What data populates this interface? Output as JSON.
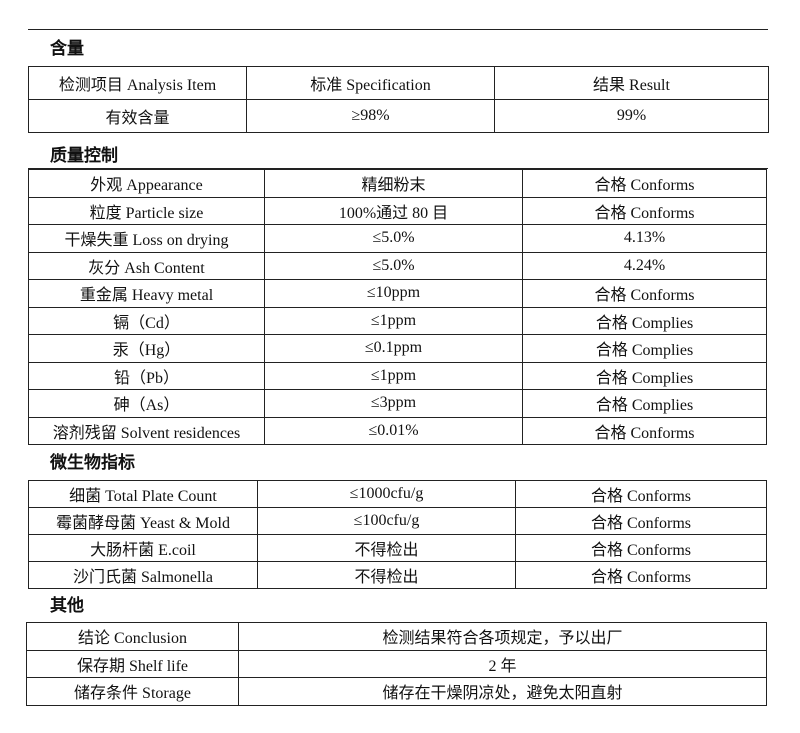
{
  "sections": [
    {
      "title": "含量",
      "header": [
        "检测项目  Analysis Item",
        "标准    Specification",
        "结果  Result"
      ],
      "rows": [
        [
          "有效含量",
          "≥98%",
          "99%"
        ]
      ]
    },
    {
      "title": "质量控制",
      "rows": [
        [
          "外观  Appearance",
          "精细粉末",
          "合格 Conforms"
        ],
        [
          "粒度  Particle size",
          "100%通过 80 目",
          "合格 Conforms"
        ],
        [
          "干燥失重 Loss on drying",
          "≤5.0%",
          "4.13%"
        ],
        [
          "灰分 Ash Content",
          "≤5.0%",
          "4.24%"
        ],
        [
          "重金属  Heavy metal",
          "≤10ppm",
          "合格 Conforms"
        ],
        [
          "镉（Cd）",
          "≤1ppm",
          "合格 Complies"
        ],
        [
          "汞（Hg）",
          "≤0.1ppm",
          "合格 Complies"
        ],
        [
          "铅（Pb）",
          "≤1ppm",
          "合格 Complies"
        ],
        [
          "砷（As）",
          "≤3ppm",
          "合格 Complies"
        ],
        [
          "溶剂残留 Solvent residences",
          "≤0.01%",
          "合格 Conforms"
        ]
      ]
    },
    {
      "title": "微生物指标",
      "rows": [
        [
          "细菌  Total Plate Count",
          "≤1000cfu/g",
          "合格 Conforms"
        ],
        [
          "霉菌酵母菌  Yeast & Mold",
          "≤100cfu/g",
          "合格 Conforms"
        ],
        [
          "大肠杆菌     E.coil",
          "不得检出",
          "合格 Conforms"
        ],
        [
          "沙门氏菌     Salmonella",
          "不得检出",
          "合格 Conforms"
        ]
      ]
    },
    {
      "title": "其他",
      "rows": [
        [
          "结论  Conclusion",
          "检测结果符合各项规定，予以出厂"
        ],
        [
          "保存期  Shelf life",
          "2 年"
        ],
        [
          "储存条件 Storage",
          "储存在干燥阴凉处，避免太阳直射"
        ]
      ]
    }
  ]
}
